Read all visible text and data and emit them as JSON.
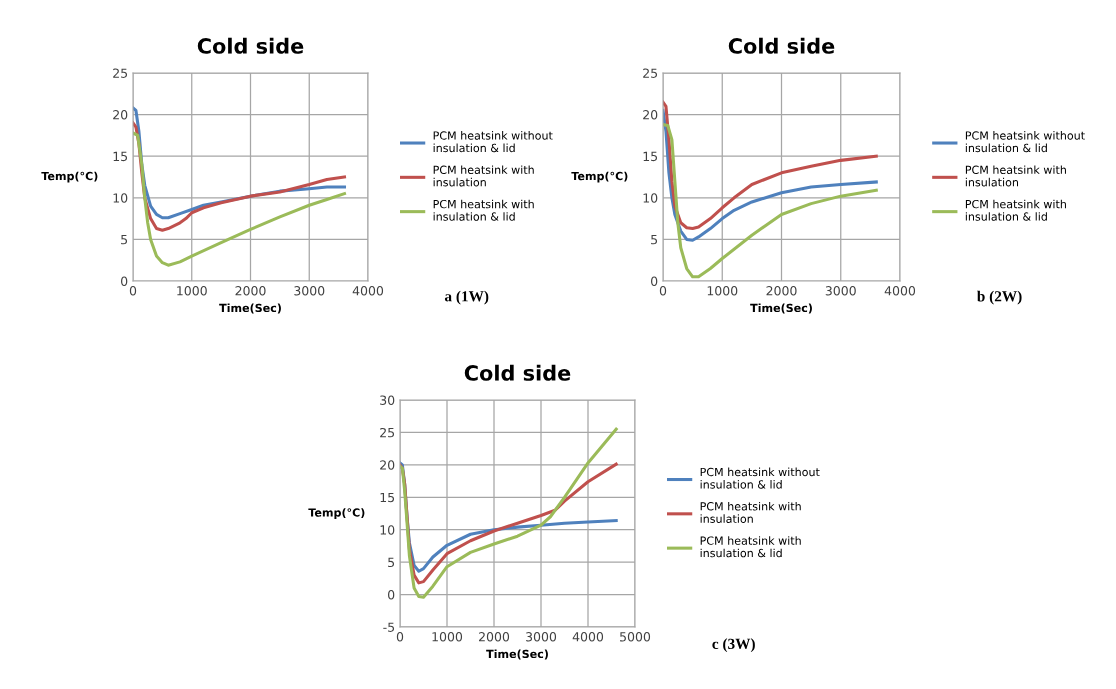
{
  "chart_data": [
    {
      "type": "line",
      "title": "Cold side",
      "xlabel": "Time(Sec)",
      "ylabel": "Temp(°C)",
      "annotations": [
        "a (1W)"
      ],
      "xlim": [
        0,
        4000
      ],
      "xticks": [
        0,
        1000,
        2000,
        3000,
        4000
      ],
      "ylim": [
        0,
        25
      ],
      "yticks": [
        0,
        5,
        10,
        15,
        20,
        25
      ],
      "grid": true,
      "legend": "right",
      "marker": "none",
      "line_style": "solid",
      "series": [
        {
          "name": "PCM heatsink without\ninsulation & lid",
          "color": "#4f81bd",
          "x": [
            0,
            50,
            100,
            150,
            200,
            300,
            400,
            500,
            600,
            800,
            1000,
            1200,
            1500,
            2000,
            2500,
            3000,
            3300,
            3600
          ],
          "values": [
            20.8,
            20.5,
            18,
            14,
            11.5,
            9,
            8,
            7.6,
            7.6,
            8.1,
            8.6,
            9.1,
            9.5,
            10.2,
            10.8,
            11.1,
            11.3,
            11.3
          ]
        },
        {
          "name": "PCM heatsink with\ninsulation",
          "color": "#c0504d",
          "x": [
            0,
            50,
            100,
            150,
            200,
            300,
            400,
            500,
            600,
            800,
            900,
            1000,
            1200,
            1500,
            2000,
            2500,
            3000,
            3300,
            3600
          ],
          "values": [
            19,
            18.5,
            16.5,
            13,
            10,
            7.5,
            6.3,
            6.1,
            6.3,
            7,
            7.5,
            8.2,
            8.8,
            9.4,
            10.2,
            10.7,
            11.6,
            12.2,
            12.5
          ]
        },
        {
          "name": "PCM heatsink with\ninsulation & lid",
          "color": "#9bbb59",
          "x": [
            0,
            80,
            150,
            200,
            250,
            300,
            400,
            500,
            600,
            800,
            1000,
            1500,
            2000,
            2500,
            3000,
            3300,
            3600
          ],
          "values": [
            17.8,
            17.5,
            14,
            10,
            7,
            5,
            3,
            2.2,
            1.9,
            2.3,
            3,
            4.6,
            6.2,
            7.7,
            9.1,
            9.8,
            10.5
          ]
        }
      ]
    },
    {
      "type": "line",
      "title": "Cold side",
      "xlabel": "Time(Sec)",
      "ylabel": "Temp(°C)",
      "annotations": [
        "b (2W)"
      ],
      "xlim": [
        0,
        4000
      ],
      "xticks": [
        0,
        1000,
        2000,
        3000,
        4000
      ],
      "ylim": [
        0,
        25
      ],
      "yticks": [
        0,
        5,
        10,
        15,
        20,
        25
      ],
      "grid": true,
      "legend": "right",
      "marker": "none",
      "line_style": "solid",
      "series": [
        {
          "name": "PCM heatsink without\ninsulation & lid",
          "color": "#4f81bd",
          "x": [
            0,
            50,
            100,
            150,
            200,
            300,
            400,
            500,
            600,
            800,
            1000,
            1200,
            1500,
            2000,
            2500,
            3000,
            3600
          ],
          "values": [
            20.5,
            18,
            13,
            10,
            8,
            6,
            5,
            4.9,
            5.3,
            6.3,
            7.5,
            8.5,
            9.5,
            10.6,
            11.3,
            11.6,
            11.9
          ]
        },
        {
          "name": "PCM heatsink with\ninsulation",
          "color": "#c0504d",
          "x": [
            0,
            50,
            100,
            150,
            200,
            300,
            400,
            500,
            600,
            800,
            1000,
            1200,
            1500,
            2000,
            2500,
            3000,
            3600
          ],
          "values": [
            21.5,
            21,
            17,
            12,
            9,
            7,
            6.4,
            6.3,
            6.5,
            7.5,
            8.8,
            10,
            11.6,
            13,
            13.8,
            14.5,
            15
          ]
        },
        {
          "name": "PCM heatsink with\ninsulation & lid",
          "color": "#9bbb59",
          "x": [
            0,
            80,
            150,
            200,
            250,
            300,
            400,
            500,
            600,
            800,
            1000,
            1500,
            2000,
            2500,
            3000,
            3600
          ],
          "values": [
            18.8,
            18.7,
            17,
            12,
            7,
            4,
            1.5,
            0.5,
            0.5,
            1.5,
            2.7,
            5.5,
            8,
            9.3,
            10.2,
            10.9
          ]
        }
      ]
    },
    {
      "type": "line",
      "title": "Cold side",
      "xlabel": "Time(Sec)",
      "ylabel": "Temp(°C)",
      "annotations": [
        "c (3W)"
      ],
      "xlim": [
        0,
        5000
      ],
      "xticks": [
        0,
        1000,
        2000,
        3000,
        4000,
        5000
      ],
      "ylim": [
        -5,
        30
      ],
      "yticks": [
        -5,
        0,
        5,
        10,
        15,
        20,
        25,
        30
      ],
      "grid": true,
      "legend": "right",
      "marker": "none",
      "line_style": "solid",
      "series": [
        {
          "name": "PCM heatsink without\ninsulation & lid",
          "color": "#4f81bd",
          "x": [
            0,
            50,
            100,
            150,
            200,
            300,
            400,
            500,
            700,
            1000,
            1500,
            2000,
            2500,
            3000,
            3500,
            4000,
            4600
          ],
          "values": [
            20.3,
            20,
            17,
            12,
            8,
            4.5,
            3.6,
            4,
            5.8,
            7.6,
            9.3,
            10,
            10.4,
            10.7,
            11,
            11.2,
            11.4
          ]
        },
        {
          "name": "PCM heatsink with\ninsulation",
          "color": "#c0504d",
          "x": [
            0,
            50,
            100,
            150,
            200,
            300,
            400,
            500,
            700,
            1000,
            1500,
            2000,
            2500,
            3000,
            3300,
            3500,
            4000,
            4600
          ],
          "values": [
            20,
            19.5,
            17,
            12,
            7,
            3,
            1.8,
            2,
            3.8,
            6.3,
            8.3,
            9.8,
            11,
            12.2,
            13,
            14.4,
            17.4,
            20.1
          ]
        },
        {
          "name": "PCM heatsink with\ninsulation & lid",
          "color": "#9bbb59",
          "x": [
            0,
            50,
            100,
            150,
            200,
            300,
            400,
            500,
            700,
            1000,
            1500,
            2000,
            2500,
            3000,
            3200,
            3500,
            4000,
            4600
          ],
          "values": [
            19.8,
            19.5,
            16,
            11,
            6,
            1,
            -0.3,
            -0.4,
            1.3,
            4.3,
            6.5,
            7.8,
            9,
            10.7,
            12,
            15,
            20.3,
            25.5
          ]
        }
      ]
    }
  ]
}
